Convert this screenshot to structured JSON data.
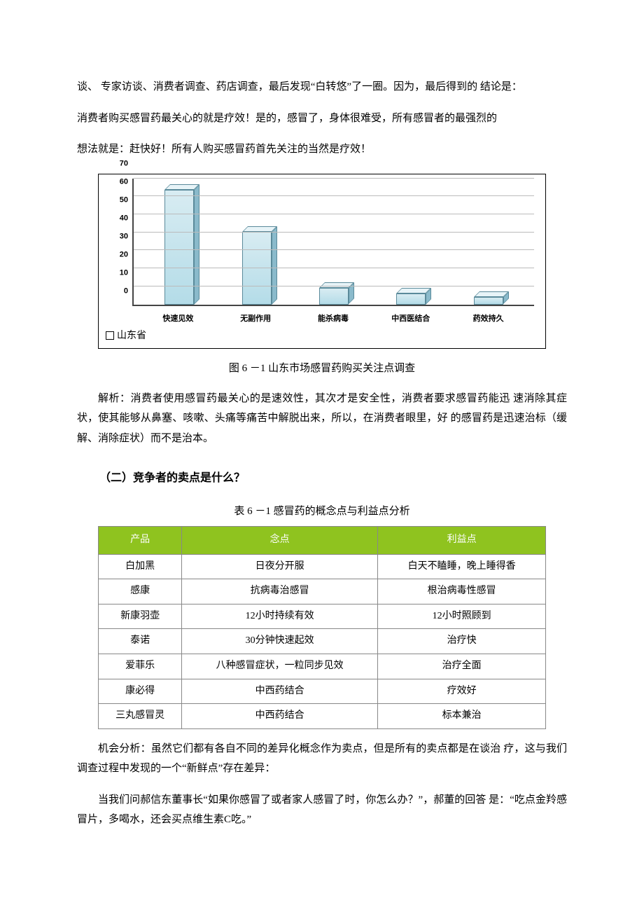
{
  "paragraphs": {
    "p1": "谈、 专家访谈、消费者调查、药店调查，最后发现“白转悠”了一圈。因为，最后得到的\n结论是：",
    "p2": "消费者购买感冒药最关心的就是疗效！是的，感冒了，身体很难受，所有感冒者的最强烈的",
    "p3": "想法就是：赶快好！所有人购买感冒药首先关注的当然是疗效！",
    "p4": "解析：消费者使用感冒药最关心的是速效性，其次才是安全性，消费者要求感冒药能迅 速消除其症状，使其能够从鼻塞、咳嗽、头痛等痛苦中解脱出来，所以，在消费者眼里，好 的感冒药是迅速治标（缓解、消除症状）而不是治本。",
    "p5": "机会分析：虽然它们都有各自不同的差异化概念作为卖点，但是所有的卖点都是在谈治 疗，这与我们调查过程中发现的一个“新鲜点”存在差异：",
    "p6": "当我们问郝信东董事长“如果你感冒了或者家人感冒了时，你怎么办？”，郝董的回答 是：“吃点金羚感冒片，多喝水，还会买点维生素C吃。”"
  },
  "chart": {
    "legend": "山东省",
    "caption": "图 6 －1 山东市场感冒药购买关注点调查",
    "y_ticks": [
      0,
      10,
      20,
      30,
      40,
      50,
      60,
      70
    ],
    "ylim_max": 70,
    "categories": [
      "快速见效",
      "无副作用",
      "能杀病毒",
      "中西医结合",
      "药效持久"
    ],
    "values": [
      63,
      40,
      9,
      6,
      4
    ],
    "bar_fill_top": "#d8ecf2",
    "bar_fill_bottom": "#b4dce8",
    "bar_border": "#5a8a9a",
    "grid_color": "#bbbbbb",
    "axis_color": "#444444"
  },
  "section2": {
    "heading": "（二）竞争者的卖点是什么？",
    "table_caption": "表 6 －1 感冒药的概念点与利益点分析",
    "columns": [
      "产品",
      "念点",
      "利益点"
    ],
    "header_bg": "#8fc31f",
    "header_fg": "#ffffff",
    "rows": [
      [
        "白加黑",
        "日夜分开服",
        "白天不瞌睡，晚上睡得香"
      ],
      [
        "感康",
        "抗病毒治感冒",
        "根治病毒性感冒"
      ],
      [
        "新康羽壶",
        "12小时持续有效",
        "12小时照顾到"
      ],
      [
        "泰诺",
        "30分钟快速起效",
        "治疗快"
      ],
      [
        "爱菲乐",
        "八种感冒症状，一粒同步见效",
        "治疗全面"
      ],
      [
        "康必得",
        "中西药结合",
        "疗效好"
      ],
      [
        "三丸感冒灵",
        "中西药结合",
        "标本兼治"
      ]
    ]
  }
}
